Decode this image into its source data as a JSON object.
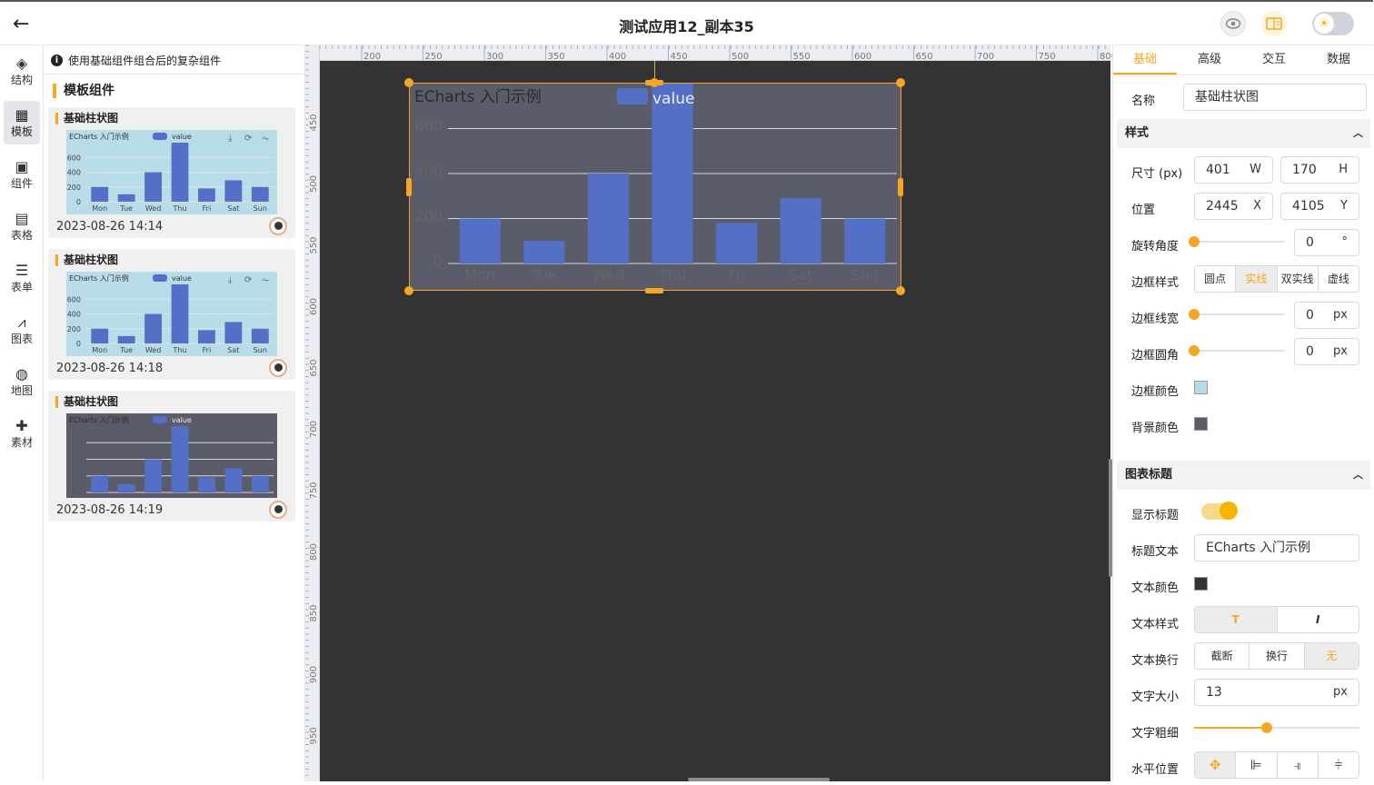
{
  "app": {
    "title": "测试应用12_副本35"
  },
  "nav": {
    "items": [
      {
        "label": "结构",
        "icon": "layers-icon",
        "glyph": "◈"
      },
      {
        "label": "模板",
        "icon": "template-icon",
        "glyph": "▦"
      },
      {
        "label": "组件",
        "icon": "components-icon",
        "glyph": "▣"
      },
      {
        "label": "表格",
        "icon": "table-icon",
        "glyph": "▤"
      },
      {
        "label": "表单",
        "icon": "form-icon",
        "glyph": "☰"
      },
      {
        "label": "图表",
        "icon": "chart-icon",
        "glyph": "⩘"
      },
      {
        "label": "地图",
        "icon": "globe-icon",
        "glyph": "◍"
      },
      {
        "label": "素材",
        "icon": "puzzle-icon",
        "glyph": "✚"
      }
    ]
  },
  "templates": {
    "info": "使用基础组件组合后的复杂组件",
    "heading": "模板组件",
    "cards": [
      {
        "title": "基础柱状图",
        "date": "2023-08-26 14:14"
      },
      {
        "title": "基础柱状图",
        "date": "2023-08-26 14:18"
      },
      {
        "title": "基础柱状图",
        "date": "2023-08-26 14:19"
      }
    ]
  },
  "ruler": {
    "top": [
      "200",
      "250",
      "300",
      "350",
      "400",
      "450",
      "500",
      "550",
      "600",
      "650",
      "700",
      "750",
      "800"
    ],
    "left": [
      "450",
      "500",
      "550",
      "600",
      "650",
      "700",
      "750",
      "800",
      "850",
      "900",
      "950"
    ]
  },
  "chart_data": [
    {
      "type": "bar",
      "title": "ECharts 入门示例",
      "legend": "value",
      "categories": [
        "Mon",
        "Tue",
        "Wed",
        "Thu",
        "Fri",
        "Sat",
        "Sun"
      ],
      "values": [
        200,
        100,
        400,
        800,
        180,
        290,
        200
      ],
      "ylim": [
        0,
        800
      ],
      "yticks": [
        "0",
        "200",
        "400",
        "600"
      ]
    },
    {
      "type": "bar",
      "title": "ECharts 入门示例",
      "legend": "value",
      "categories": [
        "Mon",
        "Tue",
        "Wed",
        "Thu",
        "Fri",
        "Sat",
        "Sun"
      ],
      "values": [
        200,
        100,
        400,
        800,
        180,
        290,
        200
      ],
      "ylim": [
        0,
        800
      ],
      "yticks": [
        "0",
        "200",
        "400",
        "600"
      ]
    },
    {
      "type": "bar",
      "title": "ECharts 入门示例",
      "legend": "value",
      "categories": [
        "Mon",
        "Tue",
        "Wed",
        "Thu",
        "Fri",
        "Sat",
        "Sun"
      ],
      "values": [
        200,
        100,
        400,
        800,
        180,
        290,
        200
      ],
      "ylim": [
        0,
        800
      ],
      "yticks": [],
      "background": "#5a5d69"
    },
    {
      "type": "bar",
      "title": "ECharts 入门示例",
      "legend": "value",
      "categories": [
        "Mon",
        "Tue",
        "Wed",
        "Thu",
        "Fri",
        "Sat",
        "Sun"
      ],
      "values": [
        200,
        100,
        400,
        800,
        180,
        290,
        200
      ],
      "ylim": [
        0,
        800
      ],
      "yticks": [
        "0",
        "200",
        "400",
        "600"
      ],
      "background": "#5a5d69"
    }
  ],
  "colors": {
    "accent": "#f5a623",
    "bar": "#5470c6",
    "border_color": "#b7dbe8",
    "bg_color": "#5a5d69",
    "text_color": "#333333"
  },
  "props": {
    "tabs": [
      "基础",
      "高级",
      "交互",
      "数据"
    ],
    "name_label": "名称",
    "name_value": "基础柱状图",
    "style_section": "样式",
    "size_label": "尺寸 (px)",
    "w": "401",
    "w_suf": "W",
    "h": "170",
    "h_suf": "H",
    "pos_label": "位置",
    "x": "2445",
    "x_suf": "X",
    "y": "4105",
    "y_suf": "Y",
    "rotate_label": "旋转角度",
    "rotate": "0",
    "rotate_suf": "°",
    "border_style_label": "边框样式",
    "border_styles": [
      "圆点",
      "实线",
      "双实线",
      "虚线"
    ],
    "border_style_selected": 1,
    "border_width_label": "边框线宽",
    "border_width": "0",
    "px": "px",
    "radius_label": "边框圆角",
    "radius": "0",
    "border_color_label": "边框颜色",
    "bg_color_label": "背景颜色",
    "title_section": "图表标题",
    "show_title_label": "显示标题",
    "show_title": true,
    "title_text_label": "标题文本",
    "title_text": "ECharts 入门示例",
    "text_color_label": "文本颜色",
    "text_style_label": "文本样式",
    "text_styles": [
      "T",
      "I"
    ],
    "wrap_label": "文本换行",
    "wrap_options": [
      "截断",
      "换行",
      "无"
    ],
    "wrap_selected": 2,
    "font_size_label": "文字大小",
    "font_size": "13",
    "font_weight_label": "文字粗细",
    "font_weight": 0.44,
    "halign_label": "水平位置"
  }
}
